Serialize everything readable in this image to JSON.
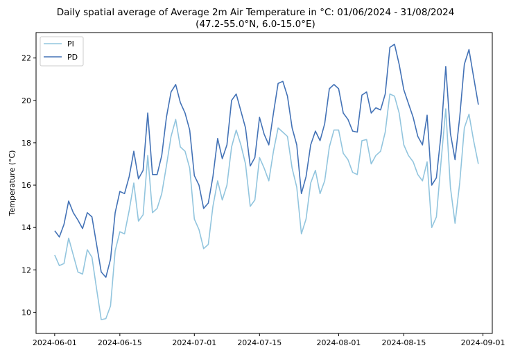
{
  "chart_data": {
    "type": "line",
    "title": "Daily spatial average of Average 2m Air Temperature in °C: 01/06/2024 - 31/08/2024",
    "subtitle": "(47.2-55.0°N, 6.0-15.0°E)",
    "xlabel": "",
    "ylabel": "Temperature (°C)",
    "xlim": [
      "2024-05-28",
      "2024-09-03"
    ],
    "ylim": [
      9.0,
      23.2
    ],
    "xticks": [
      "2024-06-01",
      "2024-06-15",
      "2024-07-01",
      "2024-07-15",
      "2024-08-01",
      "2024-08-15",
      "2024-09-01"
    ],
    "yticks": [
      10,
      12,
      14,
      16,
      18,
      20,
      22
    ],
    "grid": false,
    "legend_position": "top-left",
    "x_start": "2024-06-01",
    "x_step_days": 1,
    "series": [
      {
        "name": "PI",
        "color": "#92c5de",
        "values": [
          12.7,
          12.2,
          12.3,
          13.5,
          12.7,
          11.9,
          11.8,
          12.95,
          12.6,
          11.1,
          9.65,
          9.7,
          10.3,
          12.9,
          13.8,
          13.7,
          14.8,
          16.1,
          14.3,
          14.6,
          17.4,
          14.7,
          14.9,
          15.6,
          16.9,
          18.3,
          19.1,
          17.8,
          17.6,
          16.8,
          14.4,
          13.9,
          13.0,
          13.2,
          15.0,
          16.2,
          15.3,
          16.0,
          17.8,
          18.6,
          17.9,
          17.0,
          15.0,
          15.3,
          17.3,
          16.8,
          16.2,
          17.6,
          18.7,
          18.5,
          18.3,
          16.8,
          15.9,
          13.7,
          14.4,
          16.1,
          16.7,
          15.6,
          16.2,
          17.8,
          18.6,
          18.6,
          17.5,
          17.2,
          16.6,
          16.5,
          18.1,
          18.15,
          17.0,
          17.4,
          17.6,
          18.5,
          20.3,
          20.2,
          19.4,
          17.9,
          17.4,
          17.1,
          16.5,
          16.2,
          17.1,
          14.0,
          14.5,
          17.1,
          19.6,
          15.9,
          14.2,
          16.1,
          18.7,
          19.35,
          18.1,
          17.0
        ]
      },
      {
        "name": "PD",
        "color": "#4372b6",
        "values": [
          13.85,
          13.55,
          14.15,
          15.25,
          14.7,
          14.35,
          13.95,
          14.7,
          14.5,
          13.2,
          11.9,
          11.65,
          12.5,
          14.7,
          15.7,
          15.6,
          16.4,
          17.6,
          16.3,
          16.7,
          19.4,
          16.5,
          16.5,
          17.4,
          19.2,
          20.4,
          20.75,
          19.9,
          19.4,
          18.6,
          16.45,
          16.0,
          14.9,
          15.15,
          16.4,
          18.2,
          17.25,
          17.9,
          20.0,
          20.3,
          19.5,
          18.7,
          16.9,
          17.3,
          19.2,
          18.4,
          17.9,
          19.4,
          20.8,
          20.9,
          20.2,
          18.7,
          17.9,
          15.6,
          16.4,
          17.9,
          18.55,
          18.1,
          18.9,
          20.55,
          20.75,
          20.55,
          19.4,
          19.1,
          18.55,
          18.5,
          20.25,
          20.4,
          19.4,
          19.65,
          19.55,
          20.3,
          22.5,
          22.65,
          21.7,
          20.5,
          19.85,
          19.2,
          18.3,
          17.9,
          19.3,
          16.0,
          16.35,
          18.4,
          21.6,
          18.45,
          17.2,
          19.2,
          21.7,
          22.4,
          21.1,
          19.8
        ]
      }
    ]
  }
}
